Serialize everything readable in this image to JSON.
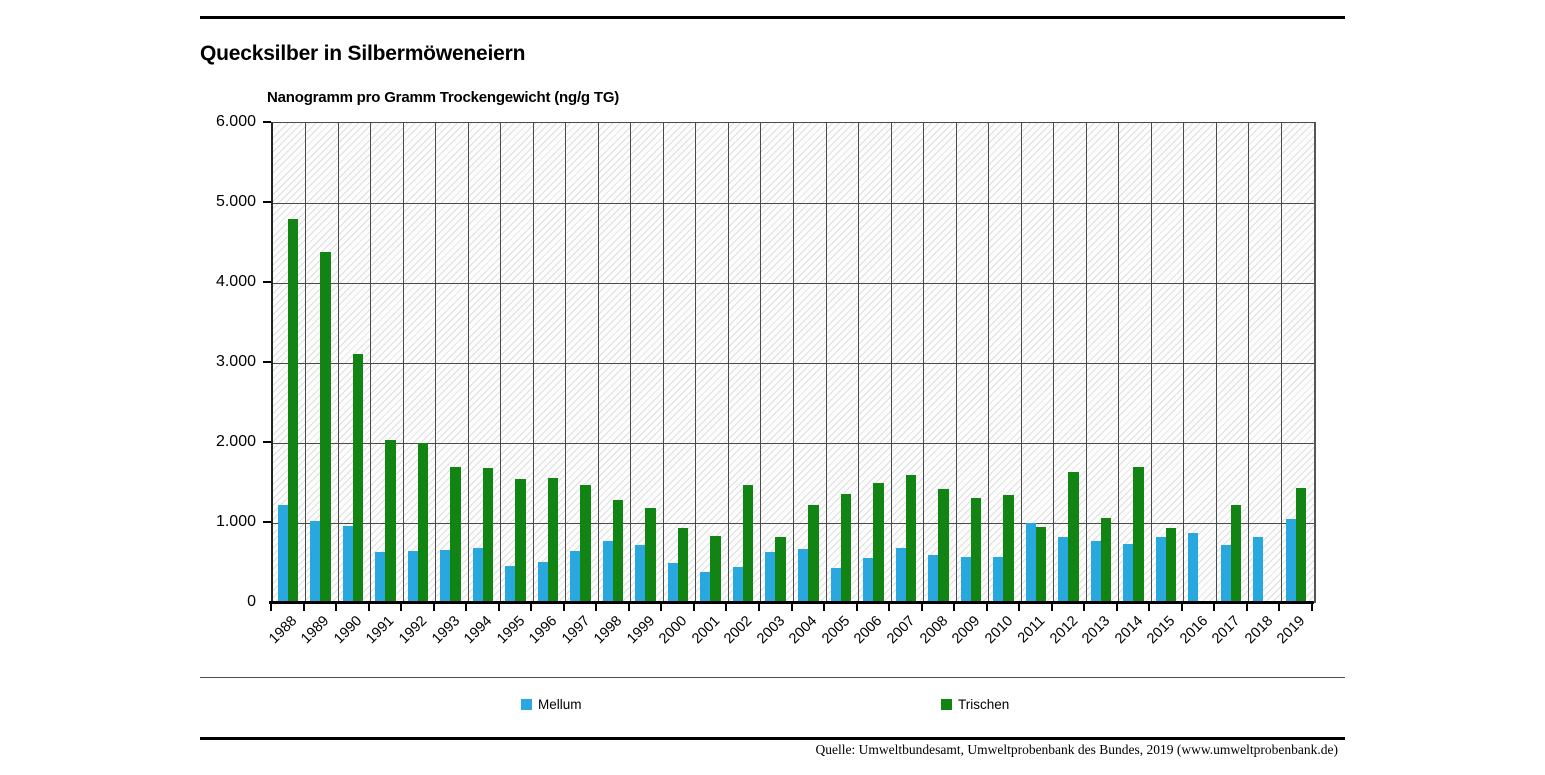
{
  "page": {
    "title": "Quecksilber in Silbermöweneiern",
    "axis_unit_label": "Nanogramm pro Gramm Trockengewicht (ng/g TG)",
    "source": "Quelle: Umweltbundesamt, Umweltprobenbank des Bundes, 2019 (www.umweltprobenbank.de)"
  },
  "legend": {
    "items": [
      {
        "label": "Mellum",
        "color": "#29A7DF"
      },
      {
        "label": "Trischen",
        "color": "#128413"
      }
    ]
  },
  "colors": {
    "mellum_blue": "#29A7DF",
    "trischen_green": "#128413",
    "gridline": "#4a4a4a",
    "hatch": "#dedede"
  },
  "chart_data": {
    "type": "bar",
    "title": "Quecksilber in Silbermöweneiern",
    "ylabel": "Nanogramm pro Gramm Trockengewicht (ng/g TG)",
    "xlabel": "",
    "ylim": [
      0,
      6000
    ],
    "ytick_step": 1000,
    "ytick_labels": [
      "0",
      "1.000",
      "2.000",
      "3.000",
      "4.000",
      "5.000",
      "6.000"
    ],
    "grid": true,
    "legend_position": "bottom",
    "background_pattern": "diagonal-hatch",
    "categories": [
      "1988",
      "1989",
      "1990",
      "1991",
      "1992",
      "1993",
      "1994",
      "1995",
      "1996",
      "1997",
      "1998",
      "1999",
      "2000",
      "2001",
      "2002",
      "2003",
      "2004",
      "2005",
      "2006",
      "2007",
      "2008",
      "2009",
      "2010",
      "2011",
      "2012",
      "2013",
      "2014",
      "2015",
      "2016",
      "2017",
      "2018",
      "2019"
    ],
    "series": [
      {
        "name": "Mellum",
        "color": "#29A7DF",
        "values": [
          1220,
          1030,
          960,
          640,
          650,
          660,
          690,
          460,
          510,
          650,
          770,
          730,
          500,
          390,
          450,
          640,
          680,
          440,
          560,
          690,
          600,
          580,
          570,
          1000,
          830,
          770,
          740,
          820,
          880,
          730,
          820,
          1050
        ]
      },
      {
        "name": "Trischen",
        "color": "#128413",
        "values": [
          4800,
          4390,
          3110,
          2040,
          2000,
          1700,
          1690,
          1550,
          1560,
          1480,
          1290,
          1190,
          940,
          840,
          1480,
          830,
          1220,
          1360,
          1500,
          1600,
          1420,
          1310,
          1350,
          950,
          1640,
          1060,
          1700,
          940,
          null,
          1230,
          null,
          1440
        ]
      }
    ]
  }
}
